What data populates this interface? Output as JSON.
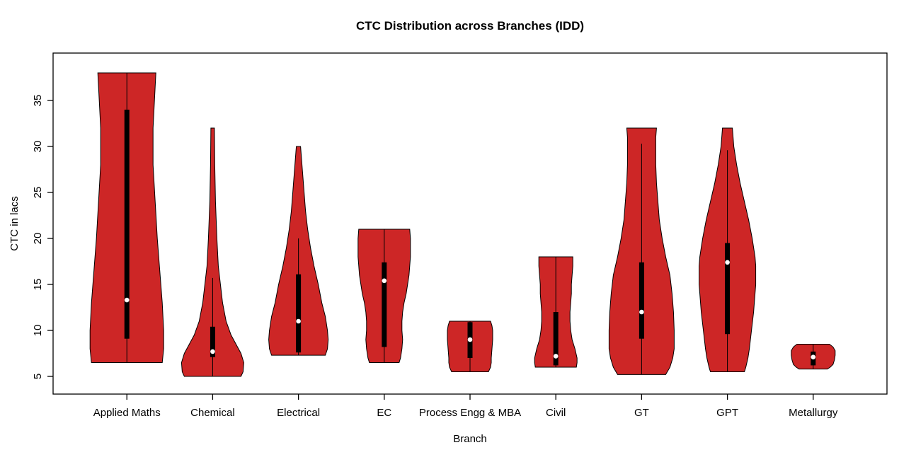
{
  "colors": {
    "violin_fill": "#CD2626",
    "violin_stroke": "#000000",
    "box_fill": "#000000",
    "median_fill": "#FFFFFF",
    "background": "#FFFFFF",
    "axis": "#000000"
  },
  "chart_data": {
    "type": "violin",
    "title": "CTC Distribution across Branches (IDD)",
    "xlabel": "Branch",
    "ylabel": "CTC in lacs",
    "ylim": [
      3,
      40
    ],
    "yticks": [
      5,
      10,
      15,
      20,
      25,
      30,
      35
    ],
    "grid": false,
    "legend": "none",
    "categories": [
      "Applied Maths",
      "Chemical",
      "Electrical",
      "EC",
      "Process Engg & MBA",
      "Civil",
      "GT",
      "GPT",
      "Metallurgy"
    ],
    "series": [
      {
        "name": "Applied Maths",
        "min": 6.5,
        "max": 38,
        "q1": 9.1,
        "median": 13.3,
        "q3": 34,
        "whisker_low": 6.5,
        "whisker_high": 38,
        "profile": [
          [
            6.5,
            50
          ],
          [
            8,
            52
          ],
          [
            10,
            52
          ],
          [
            13,
            50
          ],
          [
            16,
            47
          ],
          [
            20,
            43
          ],
          [
            24,
            40
          ],
          [
            28,
            37
          ],
          [
            32,
            37
          ],
          [
            35,
            39
          ],
          [
            38,
            41
          ]
        ]
      },
      {
        "name": "Chemical",
        "min": 5.0,
        "max": 32,
        "q1": 7.1,
        "median": 7.7,
        "q3": 10.4,
        "whisker_low": 5.0,
        "whisker_high": 15.7,
        "profile": [
          [
            5.0,
            40
          ],
          [
            5.5,
            43
          ],
          [
            6.5,
            44
          ],
          [
            7.5,
            40
          ],
          [
            8.5,
            33
          ],
          [
            9.5,
            26
          ],
          [
            11,
            19
          ],
          [
            13,
            14
          ],
          [
            15,
            11
          ],
          [
            17,
            8
          ],
          [
            20,
            6
          ],
          [
            24,
            4
          ],
          [
            28,
            3
          ],
          [
            32,
            2.5
          ]
        ]
      },
      {
        "name": "Electrical",
        "min": 7.3,
        "max": 30,
        "q1": 7.6,
        "median": 11.0,
        "q3": 16.1,
        "whisker_low": 7.3,
        "whisker_high": 20,
        "profile": [
          [
            7.3,
            38
          ],
          [
            8,
            41
          ],
          [
            9,
            42
          ],
          [
            10,
            41
          ],
          [
            11.5,
            38
          ],
          [
            13,
            33
          ],
          [
            15,
            28
          ],
          [
            17,
            22
          ],
          [
            19,
            17
          ],
          [
            21,
            13
          ],
          [
            23,
            10
          ],
          [
            25,
            8
          ],
          [
            27,
            6
          ],
          [
            29,
            4
          ],
          [
            30,
            3
          ]
        ]
      },
      {
        "name": "EC",
        "min": 6.5,
        "max": 21,
        "q1": 8.2,
        "median": 15.4,
        "q3": 17.4,
        "whisker_low": 6.5,
        "whisker_high": 21,
        "profile": [
          [
            6.5,
            21
          ],
          [
            7,
            23
          ],
          [
            8,
            25
          ],
          [
            9,
            26
          ],
          [
            10,
            25
          ],
          [
            11,
            25
          ],
          [
            12,
            26
          ],
          [
            13,
            28
          ],
          [
            14,
            31
          ],
          [
            15,
            33
          ],
          [
            16,
            35
          ],
          [
            17,
            36
          ],
          [
            18,
            37
          ],
          [
            19,
            37
          ],
          [
            20,
            37
          ],
          [
            21,
            36
          ]
        ]
      },
      {
        "name": "Process Engg & MBA",
        "min": 5.5,
        "max": 11,
        "q1": 7.0,
        "median": 9.0,
        "q3": 10.9,
        "whisker_low": 5.5,
        "whisker_high": 11,
        "profile": [
          [
            5.5,
            26
          ],
          [
            6,
            29
          ],
          [
            6.5,
            30
          ],
          [
            7,
            30
          ],
          [
            8,
            31
          ],
          [
            9,
            32
          ],
          [
            10,
            32
          ],
          [
            10.5,
            31
          ],
          [
            11,
            29
          ]
        ]
      },
      {
        "name": "Civil",
        "min": 6.0,
        "max": 18,
        "q1": 6.2,
        "median": 7.2,
        "q3": 12.0,
        "whisker_low": 6.0,
        "whisker_high": 18,
        "profile": [
          [
            6,
            29
          ],
          [
            6.5,
            30
          ],
          [
            7,
            30
          ],
          [
            8,
            27
          ],
          [
            9,
            23
          ],
          [
            10,
            21
          ],
          [
            11,
            20
          ],
          [
            12,
            20
          ],
          [
            13,
            21
          ],
          [
            14,
            22
          ],
          [
            15,
            22
          ],
          [
            16,
            23
          ],
          [
            17,
            24
          ],
          [
            18,
            24
          ]
        ]
      },
      {
        "name": "GT",
        "min": 5.2,
        "max": 32,
        "q1": 9.1,
        "median": 12.0,
        "q3": 17.4,
        "whisker_low": 5.2,
        "whisker_high": 30.3,
        "profile": [
          [
            5.2,
            34
          ],
          [
            6,
            40
          ],
          [
            7,
            44
          ],
          [
            8,
            46
          ],
          [
            9,
            46
          ],
          [
            10,
            46
          ],
          [
            12,
            45
          ],
          [
            14,
            43
          ],
          [
            16,
            40
          ],
          [
            18,
            34
          ],
          [
            20,
            29
          ],
          [
            22,
            25
          ],
          [
            24,
            23
          ],
          [
            26,
            21
          ],
          [
            28,
            20
          ],
          [
            30,
            20
          ],
          [
            31,
            20
          ],
          [
            32,
            21
          ]
        ]
      },
      {
        "name": "GPT",
        "min": 5.5,
        "max": 32,
        "q1": 9.6,
        "median": 17.4,
        "q3": 19.5,
        "whisker_low": 5.5,
        "whisker_high": 29.6,
        "profile": [
          [
            5.5,
            24
          ],
          [
            6,
            26
          ],
          [
            7,
            29
          ],
          [
            8,
            31
          ],
          [
            10,
            34
          ],
          [
            12,
            37
          ],
          [
            14,
            39
          ],
          [
            15,
            40
          ],
          [
            16,
            40
          ],
          [
            17,
            40
          ],
          [
            18,
            39
          ],
          [
            19,
            37
          ],
          [
            20,
            35
          ],
          [
            22,
            30
          ],
          [
            24,
            24
          ],
          [
            26,
            18
          ],
          [
            28,
            13
          ],
          [
            30,
            9
          ],
          [
            31,
            8
          ],
          [
            32,
            7
          ]
        ]
      },
      {
        "name": "Metallurgy",
        "min": 5.8,
        "max": 8.5,
        "q1": 6.2,
        "median": 7.1,
        "q3": 7.7,
        "whisker_low": 5.8,
        "whisker_high": 8.5,
        "profile": [
          [
            5.8,
            20
          ],
          [
            6,
            24
          ],
          [
            6.3,
            28
          ],
          [
            6.8,
            30
          ],
          [
            7.3,
            31
          ],
          [
            7.8,
            31
          ],
          [
            8.2,
            28
          ],
          [
            8.5,
            23
          ]
        ]
      }
    ]
  }
}
